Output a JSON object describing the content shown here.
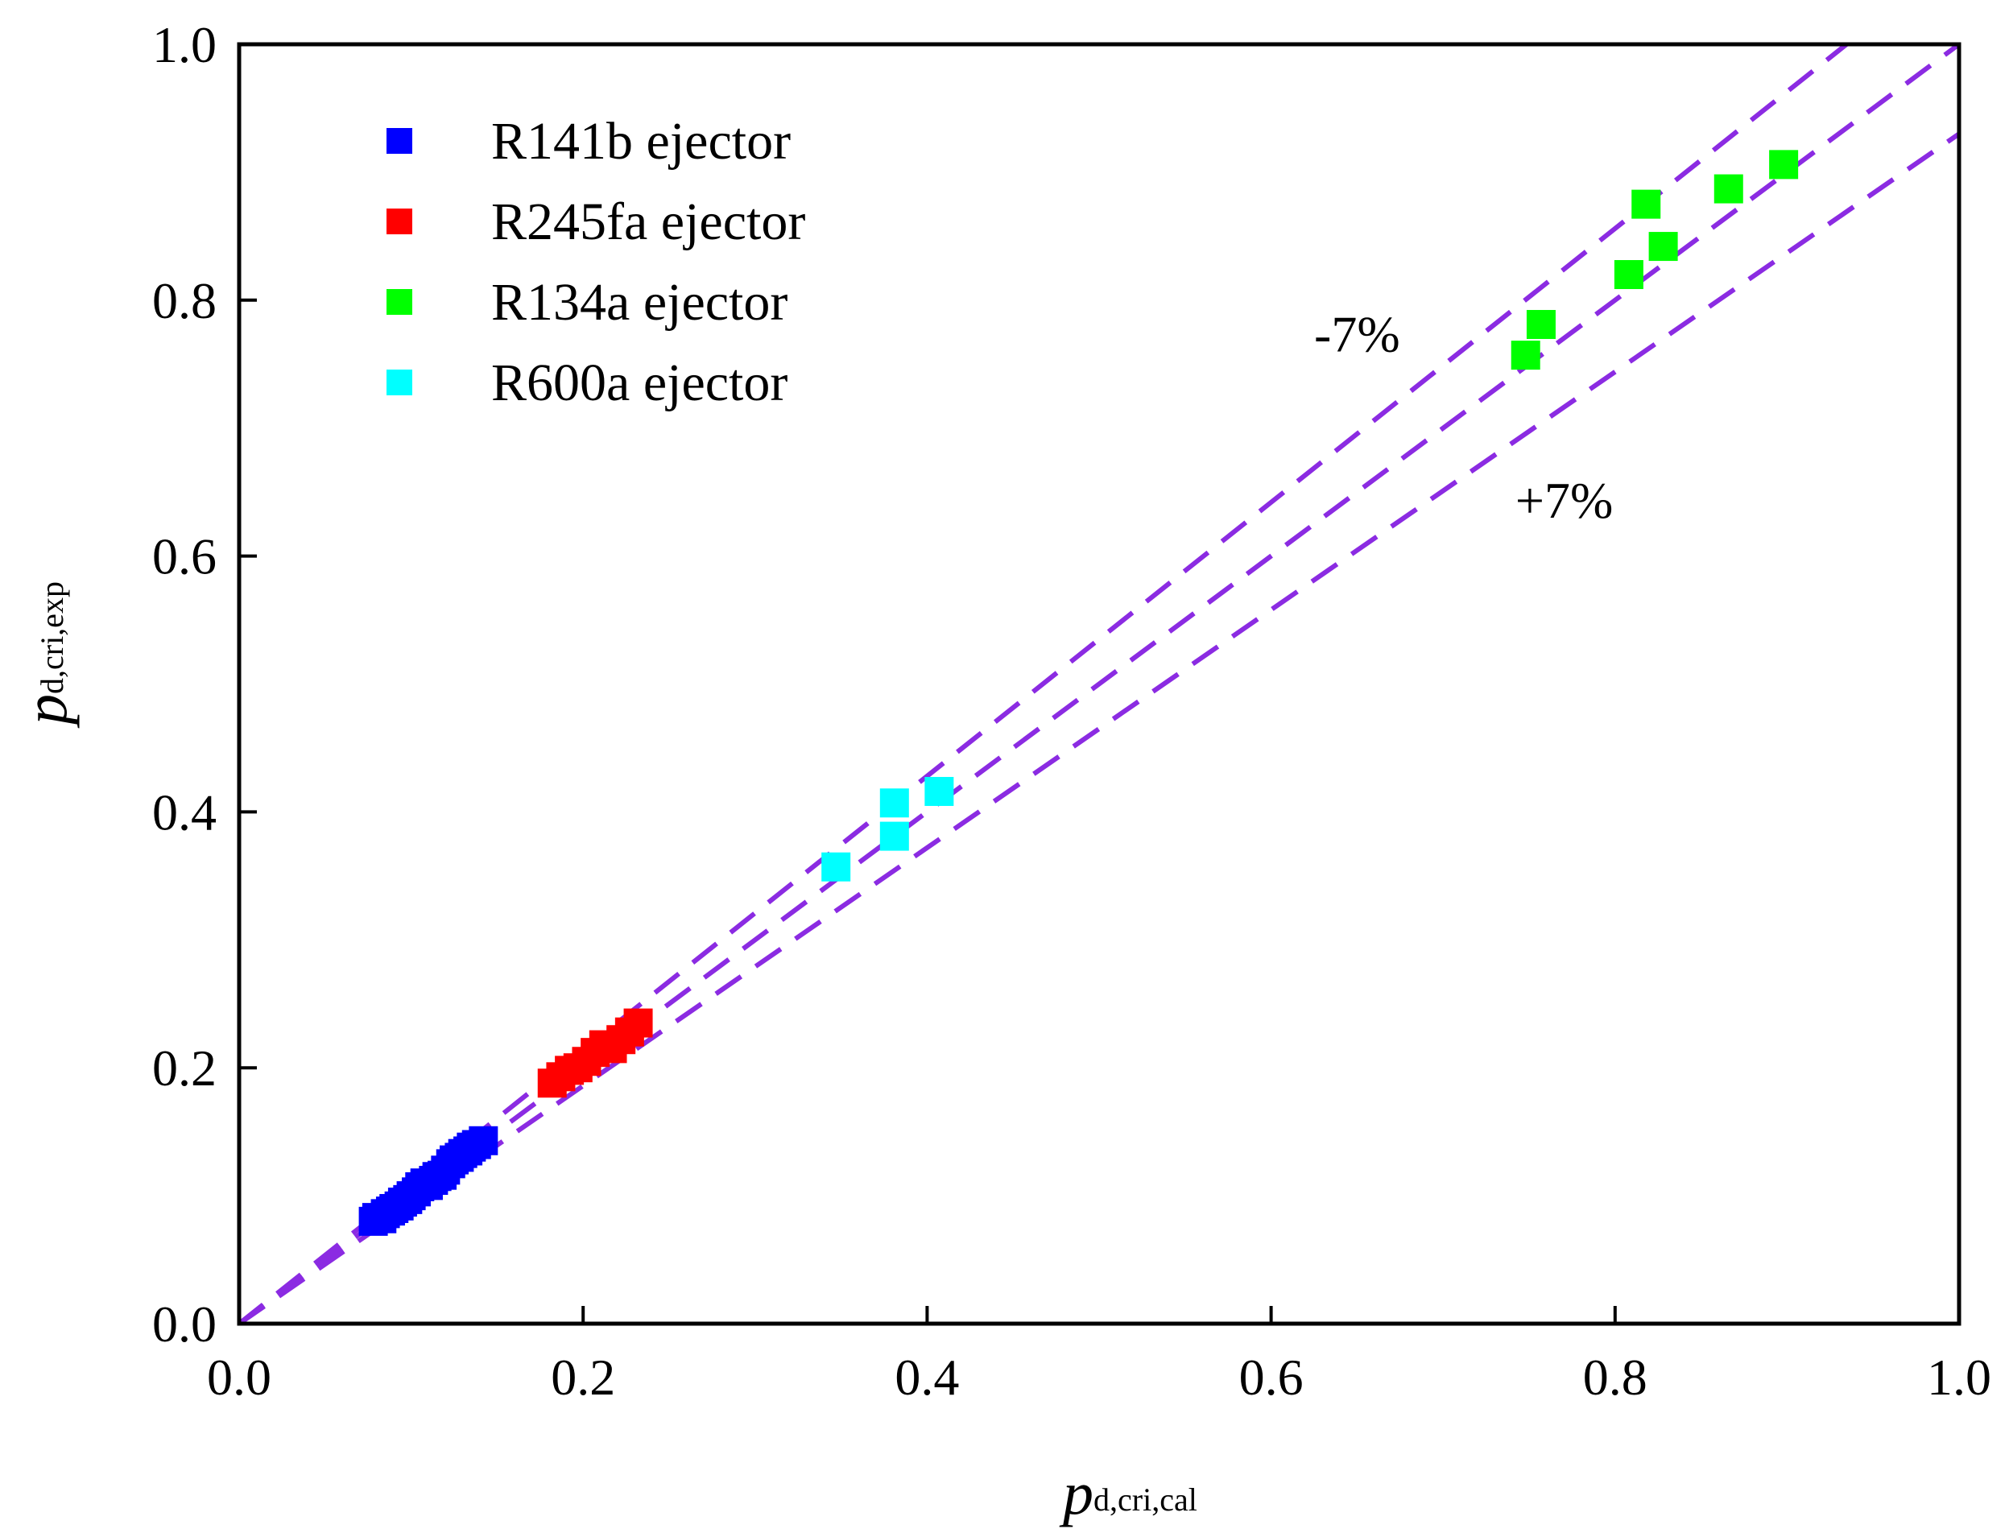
{
  "chart_data": {
    "type": "scatter",
    "xlabel": {
      "main": "p",
      "sub": "d,cri,cal"
    },
    "ylabel": {
      "main": "p",
      "sub": "d,cri,exp"
    },
    "xlim": [
      0.0,
      1.0
    ],
    "ylim": [
      0.0,
      1.0
    ],
    "xticks": [
      "0.0",
      "0.2",
      "0.4",
      "0.6",
      "0.8",
      "1.0"
    ],
    "yticks": [
      "0.0",
      "0.2",
      "0.4",
      "0.6",
      "0.8",
      "1.0"
    ],
    "grid": false,
    "legend_position": "top-left",
    "series": [
      {
        "name": "R141b ejector",
        "color": "#0000ff",
        "points": [
          [
            0.078,
            0.08
          ],
          [
            0.08,
            0.083
          ],
          [
            0.083,
            0.082
          ],
          [
            0.085,
            0.086
          ],
          [
            0.088,
            0.088
          ],
          [
            0.09,
            0.09
          ],
          [
            0.093,
            0.092
          ],
          [
            0.095,
            0.095
          ],
          [
            0.098,
            0.097
          ],
          [
            0.1,
            0.1
          ],
          [
            0.103,
            0.103
          ],
          [
            0.105,
            0.107
          ],
          [
            0.108,
            0.11
          ],
          [
            0.11,
            0.108
          ],
          [
            0.113,
            0.112
          ],
          [
            0.115,
            0.115
          ],
          [
            0.118,
            0.116
          ],
          [
            0.12,
            0.12
          ],
          [
            0.123,
            0.125
          ],
          [
            0.125,
            0.128
          ],
          [
            0.128,
            0.13
          ],
          [
            0.13,
            0.133
          ],
          [
            0.133,
            0.135
          ],
          [
            0.135,
            0.138
          ],
          [
            0.138,
            0.14
          ],
          [
            0.142,
            0.143
          ]
        ]
      },
      {
        "name": "R245fa ejector",
        "color": "#ff0000",
        "points": [
          [
            0.182,
            0.188
          ],
          [
            0.187,
            0.193
          ],
          [
            0.192,
            0.198
          ],
          [
            0.197,
            0.2
          ],
          [
            0.202,
            0.205
          ],
          [
            0.207,
            0.212
          ],
          [
            0.212,
            0.218
          ],
          [
            0.217,
            0.215
          ],
          [
            0.222,
            0.222
          ],
          [
            0.227,
            0.228
          ],
          [
            0.232,
            0.235
          ]
        ]
      },
      {
        "name": "R134a ejector",
        "color": "#00ff00",
        "points": [
          [
            0.748,
            0.757
          ],
          [
            0.757,
            0.781
          ],
          [
            0.808,
            0.82
          ],
          [
            0.818,
            0.875
          ],
          [
            0.828,
            0.842
          ],
          [
            0.866,
            0.887
          ],
          [
            0.898,
            0.906
          ]
        ]
      },
      {
        "name": "R600a ejector",
        "color": "#00ffff",
        "points": [
          [
            0.347,
            0.357
          ],
          [
            0.381,
            0.381
          ],
          [
            0.381,
            0.407
          ],
          [
            0.407,
            0.416
          ]
        ]
      }
    ],
    "reference_lines": [
      {
        "slope": 1.07,
        "color": "#8b2be2",
        "style": "dashed"
      },
      {
        "slope": 1.0,
        "color": "#8b2be2",
        "style": "dashed"
      },
      {
        "slope": 0.93,
        "color": "#8b2be2",
        "style": "dashed"
      }
    ],
    "annotations": [
      {
        "text": "-7%",
        "x": 0.625,
        "y": 0.76
      },
      {
        "text": "+7%",
        "x": 0.742,
        "y": 0.63
      }
    ]
  }
}
